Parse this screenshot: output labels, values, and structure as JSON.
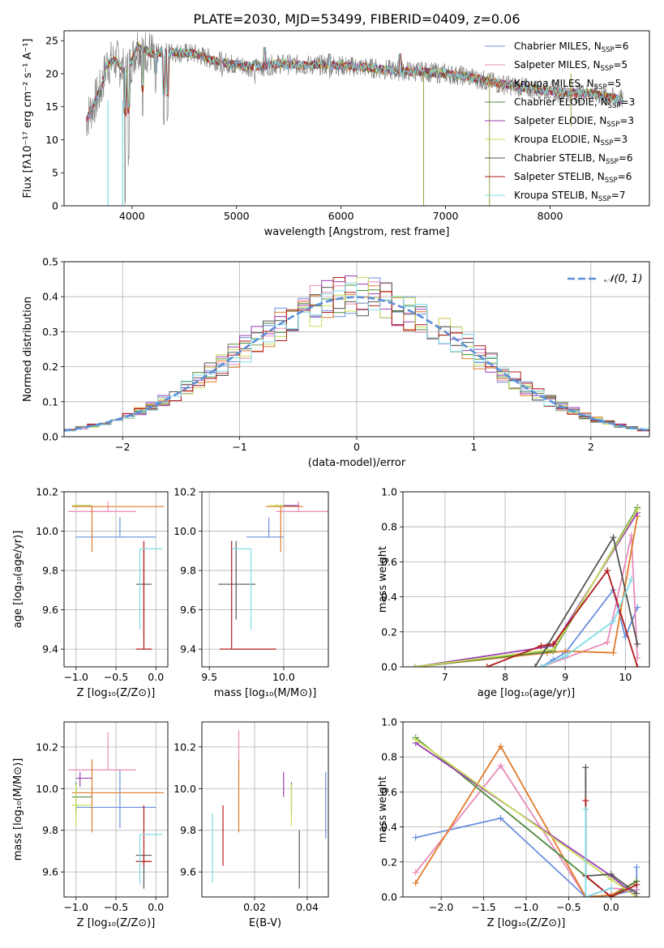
{
  "chart_data": [
    {
      "type": "line",
      "title": "PLATE=2030, MJD=53499, FIBERID=0409, z=0.06",
      "xlabel": "wavelength [Angstrom, rest frame]",
      "ylabel": "Flux [fλ10⁻¹⁷ erg cm⁻² s⁻¹ A⁻¹]",
      "xlim": [
        3350,
        8950
      ],
      "ylim": [
        0,
        26.5
      ],
      "xticks": [
        4000,
        5000,
        6000,
        7000,
        8000
      ],
      "yticks": [
        0,
        5,
        10,
        15,
        20,
        25
      ],
      "grid": false,
      "legend_position": "top-right",
      "continuum": [
        [
          3560,
          13
        ],
        [
          3700,
          17.5
        ],
        [
          3760,
          21.5
        ],
        [
          3850,
          22
        ],
        [
          3950,
          20
        ],
        [
          4050,
          24.2
        ],
        [
          4200,
          23
        ],
        [
          4400,
          23.3
        ],
        [
          4600,
          23
        ],
        [
          4800,
          22
        ],
        [
          5000,
          21.3
        ],
        [
          5200,
          21
        ],
        [
          5400,
          21.5
        ],
        [
          5600,
          21.3
        ],
        [
          5800,
          21.3
        ],
        [
          6000,
          21.2
        ],
        [
          6200,
          21
        ],
        [
          6500,
          20.5
        ],
        [
          6800,
          20.3
        ],
        [
          7000,
          20
        ],
        [
          7200,
          19.6
        ],
        [
          7500,
          18.5
        ],
        [
          7800,
          17.8
        ],
        [
          8100,
          17.2
        ],
        [
          8400,
          17
        ],
        [
          8700,
          16
        ]
      ],
      "absorption_dips": [
        [
          3934,
          0
        ],
        [
          3968,
          6
        ],
        [
          4102,
          12
        ],
        [
          4226,
          16
        ],
        [
          4304,
          12
        ],
        [
          4340,
          12
        ],
        [
          4861,
          18
        ],
        [
          5175,
          18
        ],
        [
          5270,
          20
        ],
        [
          5890,
          19
        ],
        [
          6563,
          19
        ]
      ],
      "spikes": [
        [
          6790,
          0
        ],
        [
          7420,
          0
        ],
        [
          8200,
          12
        ]
      ],
      "series": [
        {
          "name": "Chabrier MILES, N$_{SSP}$=6",
          "label": "Chabrier MILES, N",
          "sub": "SSP",
          "suffix": "=6",
          "color": "#6a8fde"
        },
        {
          "name": "Salpeter MILES, N$_{SSP}$=5",
          "label": "Salpeter MILES, N",
          "sub": "SSP",
          "suffix": "=5",
          "color": "#e88ab8"
        },
        {
          "name": "Kroupa MILES, N$_{SSP}$=5",
          "label": "Kroupa MILES, N",
          "sub": "SSP",
          "suffix": "=5",
          "color": "#e07b2b"
        },
        {
          "name": "Chabrier ELODIE, N$_{SSP}$=3",
          "label": "Chabrier ELODIE, N",
          "sub": "SSP",
          "suffix": "=3",
          "color": "#4e8a3c"
        },
        {
          "name": "Salpeter ELODIE, N$_{SSP}$=3",
          "label": "Salpeter ELODIE, N",
          "sub": "SSP",
          "suffix": "=3",
          "color": "#9a3fb4"
        },
        {
          "name": "Kroupa ELODIE, N$_{SSP}$=3",
          "label": "Kroupa ELODIE, N",
          "sub": "SSP",
          "suffix": "=3",
          "color": "#c8de58"
        },
        {
          "name": "Chabrier STELIB, N$_{SSP}$=6",
          "label": "Chabrier STELIB, N",
          "sub": "SSP",
          "suffix": "=6",
          "color": "#555555"
        },
        {
          "name": "Salpeter STELIB, N$_{SSP}$=6",
          "label": "Salpeter STELIB, N",
          "sub": "SSP",
          "suffix": "=6",
          "color": "#b21a1a"
        },
        {
          "name": "Kroupa STELIB, N$_{SSP}$=7",
          "label": "Kroupa STELIB, N",
          "sub": "SSP",
          "suffix": "=7",
          "color": "#7fdce8"
        }
      ]
    },
    {
      "type": "histogram",
      "xlabel": "(data-model)/error",
      "ylabel": "Normed distribution",
      "xlim": [
        -2.5,
        2.5
      ],
      "ylim": [
        0,
        0.5
      ],
      "xticks": [
        -2,
        -1,
        0,
        1,
        2
      ],
      "yticks": [
        0.0,
        0.1,
        0.2,
        0.3,
        0.4,
        0.5
      ],
      "grid": true,
      "legend_position": "top-right",
      "reference_curve": {
        "name": "$\\mathcal{N}(0,1)$",
        "label": "𝒩(0, 1)",
        "color": "#5b8fd6",
        "mean": 0,
        "sigma": 1
      },
      "bin_width": 0.1,
      "bin_start": -2.5,
      "colors": [
        "#6a8fde",
        "#e88ab8",
        "#e07b2b",
        "#4e8a3c",
        "#9a3fb4",
        "#c8de58",
        "#555555",
        "#b21a1a",
        "#7fdce8"
      ]
    },
    {
      "type": "errorbar",
      "xlabel": "Z [log₁₀(Z/Z⊙)]",
      "ylabel": "age  [log₁₀(age/yr)]",
      "xlim": [
        -1.15,
        0.15
      ],
      "ylim": [
        9.31,
        10.2
      ],
      "xticks": [
        -1.0,
        -0.5,
        0.0
      ],
      "yticks": [
        9.4,
        9.6,
        9.8,
        10.0,
        10.2
      ],
      "grid": true,
      "points": [
        {
          "x": -0.45,
          "y": 9.97,
          "xerr": [
            0.55,
            0.45
          ],
          "yerr": [
            0,
            0.1
          ],
          "color": "#6a8fde"
        },
        {
          "x": -0.6,
          "y": 10.1,
          "xerr": [
            0.5,
            0.35
          ],
          "yerr": [
            0,
            0.05
          ],
          "color": "#e88ab8"
        },
        {
          "x": -0.8,
          "y": 10.125,
          "xerr": [
            0.25,
            0.9
          ],
          "yerr": [
            0.23,
            0
          ],
          "color": "#e07b2b"
        },
        {
          "x": -1.0,
          "y": 10.13,
          "xerr": [
            0.05,
            0.2
          ],
          "yerr": [
            0,
            0
          ],
          "color": "#4e8a3c"
        },
        {
          "x": -0.95,
          "y": 10.13,
          "xerr": [
            0.05,
            0.15
          ],
          "yerr": [
            0,
            0
          ],
          "color": "#9a3fb4"
        },
        {
          "x": -1.0,
          "y": 10.13,
          "xerr": [
            0.05,
            0.2
          ],
          "yerr": [
            0,
            0.01
          ],
          "color": "#c8de58"
        },
        {
          "x": -0.15,
          "y": 9.73,
          "xerr": [
            0.1,
            0.1
          ],
          "yerr": [
            0.27,
            0.18
          ],
          "color": "#555555"
        },
        {
          "x": -0.15,
          "y": 9.4,
          "xerr": [
            0.1,
            0.1
          ],
          "yerr": [
            0,
            0.55
          ],
          "color": "#b21a1a"
        },
        {
          "x": -0.2,
          "y": 9.91,
          "xerr": [
            0.0,
            0.28
          ],
          "yerr": [
            0.41,
            0.0
          ],
          "color": "#7fdce8"
        }
      ]
    },
    {
      "type": "errorbar",
      "xlabel": "mass [log₁₀(M/M⊙)]",
      "xlim": [
        9.45,
        10.3
      ],
      "ylim": [
        9.31,
        10.2
      ],
      "xticks": [
        9.5,
        10.0
      ],
      "yticks": [
        9.4,
        9.6,
        9.8,
        10.0,
        10.2
      ],
      "grid": true,
      "points": [
        {
          "x": 9.9,
          "y": 9.97,
          "xerr": [
            0.15,
            0.1
          ],
          "yerr": [
            0,
            0.1
          ],
          "color": "#6a8fde"
        },
        {
          "x": 10.1,
          "y": 10.1,
          "xerr": [
            0.15,
            0.2
          ],
          "yerr": [
            0,
            0.05
          ],
          "color": "#e88ab8"
        },
        {
          "x": 9.98,
          "y": 10.125,
          "xerr": [
            0.1,
            0.15
          ],
          "yerr": [
            0.23,
            0
          ],
          "color": "#e07b2b"
        },
        {
          "x": 10.0,
          "y": 10.13,
          "xerr": [
            0.05,
            0.1
          ],
          "yerr": [
            0,
            0
          ],
          "color": "#4e8a3c"
        },
        {
          "x": 10.05,
          "y": 10.13,
          "xerr": [
            0.05,
            0.05
          ],
          "yerr": [
            0,
            0
          ],
          "color": "#9a3fb4"
        },
        {
          "x": 9.95,
          "y": 10.13,
          "xerr": [
            0.05,
            0.05
          ],
          "yerr": [
            0,
            0.01
          ],
          "color": "#c8de58"
        },
        {
          "x": 9.68,
          "y": 9.73,
          "xerr": [
            0.12,
            0.13
          ],
          "yerr": [
            0.18,
            0.22
          ],
          "color": "#555555"
        },
        {
          "x": 9.65,
          "y": 9.4,
          "xerr": [
            0.08,
            0.3
          ],
          "yerr": [
            0,
            0.55
          ],
          "color": "#b21a1a"
        },
        {
          "x": 9.78,
          "y": 9.91,
          "xerr": [
            0.13,
            0.0
          ],
          "yerr": [
            0.41,
            0.0
          ],
          "color": "#7fdce8"
        }
      ]
    },
    {
      "type": "line",
      "xlabel": "age  [log₁₀(age/yr)]",
      "ylabel": "mass weight",
      "xlim": [
        6.3,
        10.4
      ],
      "ylim": [
        0,
        1.0
      ],
      "xticks": [
        7,
        8,
        9,
        10
      ],
      "yticks": [
        0.0,
        0.2,
        0.4,
        0.6,
        0.8,
        1.0
      ],
      "grid": true,
      "series": [
        {
          "color": "#6a8fde",
          "x": [
            8.6,
            8.8,
            9.0,
            9.8,
            10.0,
            10.2
          ],
          "y": [
            0.0,
            0.04,
            0.08,
            0.44,
            0.17,
            0.34
          ]
        },
        {
          "color": "#e88ab8",
          "x": [
            8.6,
            9.0,
            9.7,
            10.1,
            10.2
          ],
          "y": [
            0.0,
            0.05,
            0.14,
            0.75,
            0.05
          ]
        },
        {
          "color": "#e07b2b",
          "x": [
            6.5,
            8.7,
            9.0,
            9.8,
            10.2
          ],
          "y": [
            0.0,
            0.08,
            0.09,
            0.08,
            0.86
          ]
        },
        {
          "color": "#4e8a3c",
          "x": [
            6.5,
            8.8,
            10.2
          ],
          "y": [
            0.0,
            0.09,
            0.91
          ]
        },
        {
          "color": "#9a3fb4",
          "x": [
            6.5,
            8.8,
            10.2
          ],
          "y": [
            0.0,
            0.12,
            0.88
          ]
        },
        {
          "color": "#c8de58",
          "x": [
            6.5,
            8.8,
            10.2
          ],
          "y": [
            0.0,
            0.1,
            0.9
          ]
        },
        {
          "color": "#555555",
          "x": [
            8.5,
            8.7,
            9.8,
            10.2
          ],
          "y": [
            0.0,
            0.12,
            0.74,
            0.13
          ]
        },
        {
          "color": "#b21a1a",
          "x": [
            7.7,
            8.6,
            8.8,
            9.7,
            10.2
          ],
          "y": [
            0.0,
            0.12,
            0.13,
            0.55,
            0.0
          ]
        },
        {
          "color": "#7fdce8",
          "x": [
            8.6,
            9.0,
            9.8,
            10.1
          ],
          "y": [
            0.0,
            0.06,
            0.26,
            0.5
          ]
        }
      ]
    },
    {
      "type": "errorbar",
      "xlabel": "Z [log₁₀(Z/Z⊙)]",
      "ylabel": "mass [log₁₀(M/M⊙)]",
      "xlim": [
        -1.15,
        0.15
      ],
      "ylim": [
        9.48,
        10.32
      ],
      "xticks": [
        -1.0,
        -0.5,
        0.0
      ],
      "yticks": [
        9.6,
        9.8,
        10.0,
        10.2
      ],
      "grid": true,
      "points": [
        {
          "x": -0.45,
          "y": 9.91,
          "xerr": [
            0.55,
            0.45
          ],
          "yerr": [
            0.1,
            0.18
          ],
          "color": "#6a8fde"
        },
        {
          "x": -0.6,
          "y": 10.09,
          "xerr": [
            0.5,
            0.35
          ],
          "yerr": [
            0.0,
            0.18
          ],
          "color": "#e88ab8"
        },
        {
          "x": -0.8,
          "y": 9.98,
          "xerr": [
            0.25,
            0.9
          ],
          "yerr": [
            0.19,
            0.16
          ],
          "color": "#e07b2b"
        },
        {
          "x": -1.0,
          "y": 9.96,
          "xerr": [
            0.05,
            0.2
          ],
          "yerr": [
            0.08,
            0.07
          ],
          "color": "#4e8a3c"
        },
        {
          "x": -0.95,
          "y": 10.05,
          "xerr": [
            0.05,
            0.15
          ],
          "yerr": [
            0.04,
            0.03
          ],
          "color": "#9a3fb4"
        },
        {
          "x": -1.0,
          "y": 9.92,
          "xerr": [
            0.05,
            0.2
          ],
          "yerr": [
            0.1,
            0.1
          ],
          "color": "#c8de58"
        },
        {
          "x": -0.15,
          "y": 9.68,
          "xerr": [
            0.1,
            0.1
          ],
          "yerr": [
            0.16,
            0.0
          ],
          "color": "#555555"
        },
        {
          "x": -0.15,
          "y": 9.65,
          "xerr": [
            0.1,
            0.1
          ],
          "yerr": [
            0.02,
            0.27
          ],
          "color": "#b21a1a"
        },
        {
          "x": -0.2,
          "y": 9.78,
          "xerr": [
            0.0,
            0.28
          ],
          "yerr": [
            0.24,
            0.0
          ],
          "color": "#7fdce8"
        }
      ]
    },
    {
      "type": "errorbar",
      "xlabel": "E(B-V)",
      "xlim": [
        0.0,
        0.048
      ],
      "ylim": [
        9.48,
        10.32
      ],
      "xticks": [
        0.02,
        0.04
      ],
      "yticks": [
        9.6,
        9.8,
        10.0,
        10.2
      ],
      "grid": true,
      "points": [
        {
          "x": 0.047,
          "y": 9.91,
          "yerr": [
            0.15,
            0.17
          ],
          "color": "#6a8fde"
        },
        {
          "x": 0.014,
          "y": 10.09,
          "yerr": [
            0.0,
            0.19
          ],
          "color": "#e88ab8"
        },
        {
          "x": 0.014,
          "y": 9.98,
          "yerr": [
            0.19,
            0.16
          ],
          "color": "#e07b2b"
        },
        {
          "x": 0.034,
          "y": 9.96,
          "yerr": [
            0.08,
            0.07
          ],
          "color": "#4e8a3c"
        },
        {
          "x": 0.031,
          "y": 10.0,
          "yerr": [
            0.04,
            0.08
          ],
          "color": "#9a3fb4"
        },
        {
          "x": 0.034,
          "y": 9.92,
          "yerr": [
            0.1,
            0.1
          ],
          "color": "#c8de58"
        },
        {
          "x": 0.037,
          "y": 9.68,
          "yerr": [
            0.16,
            0.12
          ],
          "color": "#555555"
        },
        {
          "x": 0.008,
          "y": 9.78,
          "yerr": [
            0.15,
            0.14
          ],
          "color": "#b21a1a"
        },
        {
          "x": 0.004,
          "y": 9.72,
          "yerr": [
            0.17,
            0.16
          ],
          "color": "#7fdce8"
        }
      ]
    },
    {
      "type": "line",
      "xlabel": "Z [log₁₀(Z/Z⊙)]",
      "ylabel": "mass weight",
      "xlim": [
        -2.45,
        0.45
      ],
      "ylim": [
        0,
        1.0
      ],
      "xticks": [
        -2.0,
        -1.5,
        -1.0,
        -0.5,
        0.0
      ],
      "yticks": [
        0.0,
        0.2,
        0.4,
        0.6,
        0.8,
        1.0
      ],
      "grid": true,
      "series": [
        {
          "color": "#6a8fde",
          "x": [
            -2.3,
            -1.3,
            -0.3,
            0.0,
            0.3,
            0.3
          ],
          "y": [
            0.34,
            0.45,
            0.0,
            0.01,
            0.04,
            0.17
          ]
        },
        {
          "color": "#e88ab8",
          "x": [
            -2.3,
            -1.3,
            -0.3,
            0.0,
            0.3
          ],
          "y": [
            0.14,
            0.75,
            0.0,
            0.05,
            0.04
          ]
        },
        {
          "color": "#e07b2b",
          "x": [
            -2.3,
            -1.3,
            -0.3,
            0.0,
            0.3
          ],
          "y": [
            0.08,
            0.86,
            0.0,
            0.01,
            0.09
          ]
        },
        {
          "color": "#4e8a3c",
          "x": [
            -2.3,
            0.0,
            0.3
          ],
          "y": [
            0.91,
            0.0,
            0.09
          ]
        },
        {
          "color": "#9a3fb4",
          "x": [
            -2.3,
            0.0,
            0.3
          ],
          "y": [
            0.88,
            0.12,
            0.0
          ]
        },
        {
          "color": "#c8de58",
          "x": [
            -2.3,
            0.0,
            0.3
          ],
          "y": [
            0.9,
            0.1,
            0.0
          ]
        },
        {
          "color": "#555555",
          "x": [
            -0.3,
            -0.3,
            0.0,
            0.3
          ],
          "y": [
            0.74,
            0.12,
            0.13,
            0.02
          ]
        },
        {
          "color": "#b21a1a",
          "x": [
            -0.3,
            -0.3,
            0.0,
            0.3
          ],
          "y": [
            0.55,
            0.12,
            0.0,
            0.07
          ]
        },
        {
          "color": "#7fdce8",
          "x": [
            -0.3,
            -0.3,
            0.0
          ],
          "y": [
            0.5,
            0.0,
            0.05
          ]
        }
      ]
    }
  ]
}
